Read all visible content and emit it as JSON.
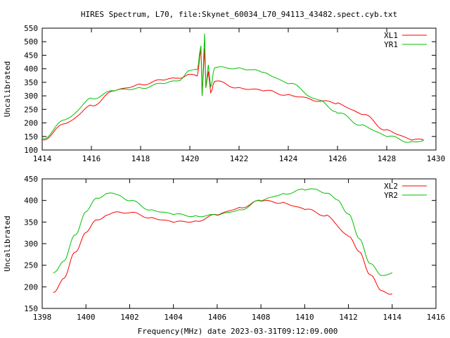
{
  "title": "HIRES Spectrum, L70, file:Skynet_60034_L70_94113_43482.spect.cyb.txt",
  "xlabel": "Frequency(MHz) date 2023-03-31T09:12:09.000",
  "colors": {
    "red": "#ff0000",
    "green": "#00c000"
  },
  "chart_data": [
    {
      "type": "line",
      "ylabel": "Uncalibrated",
      "xlim": [
        1414,
        1430
      ],
      "ylim": [
        100,
        550
      ],
      "xticks": [
        "1414",
        "1416",
        "1418",
        "1420",
        "1422",
        "1424",
        "1426",
        "1428",
        "1430"
      ],
      "yticks": [
        "100",
        "150",
        "200",
        "250",
        "300",
        "350",
        "400",
        "450",
        "500",
        "550"
      ],
      "legend_position": "top-right",
      "series": [
        {
          "name": "XL1",
          "color": "#ff0000",
          "x": [
            1414,
            1415,
            1416,
            1417,
            1418,
            1419,
            1419.5,
            1420,
            1420.3,
            1420.45,
            1420.5,
            1420.6,
            1420.65,
            1420.75,
            1420.85,
            1421,
            1422,
            1423,
            1424,
            1425.3,
            1426,
            1427,
            1428,
            1429,
            1429.5
          ],
          "y": [
            138,
            200,
            264,
            321,
            342,
            360,
            365,
            380,
            372,
            470,
            300,
            475,
            330,
            390,
            310,
            355,
            329,
            320,
            303,
            282,
            272,
            233,
            173,
            139,
            137
          ]
        },
        {
          "name": "YR1",
          "color": "#00c000",
          "x": [
            1414,
            1415,
            1416,
            1417,
            1418,
            1419,
            1419.5,
            1420,
            1420.3,
            1420.45,
            1420.5,
            1420.6,
            1420.65,
            1420.75,
            1420.85,
            1421,
            1422,
            1422.5,
            1423,
            1424,
            1425.3,
            1426,
            1427,
            1428,
            1429,
            1429.5
          ],
          "y": [
            142,
            215,
            290,
            321,
            329,
            347,
            355,
            394,
            395,
            485,
            300,
            530,
            330,
            415,
            330,
            405,
            402,
            398,
            385,
            347,
            282,
            238,
            191,
            152,
            129,
            136
          ]
        }
      ]
    },
    {
      "type": "line",
      "ylabel": "Uncalibrated",
      "xlim": [
        1398,
        1416
      ],
      "ylim": [
        150,
        450
      ],
      "xticks": [
        "1398",
        "1400",
        "1402",
        "1404",
        "1406",
        "1408",
        "1410",
        "1412",
        "1414",
        "1416"
      ],
      "yticks": [
        "150",
        "200",
        "250",
        "300",
        "350",
        "400",
        "450"
      ],
      "legend_position": "top-right",
      "series": [
        {
          "name": "XL2",
          "color": "#ff0000",
          "x": [
            1398.5,
            1399,
            1399.5,
            1400,
            1400.5,
            1401,
            1401.5,
            1402,
            1403,
            1404,
            1405,
            1406,
            1407,
            1408,
            1409,
            1410,
            1411,
            1412,
            1412.5,
            1413,
            1413.5,
            1414
          ],
          "y": [
            187,
            220,
            280,
            326,
            355,
            367,
            373,
            372,
            360,
            350,
            352,
            367,
            383,
            399,
            395,
            380,
            365,
            318,
            280,
            229,
            190,
            184
          ]
        },
        {
          "name": "YR2",
          "color": "#00c000",
          "x": [
            1398.5,
            1399,
            1399.5,
            1400,
            1400.5,
            1401,
            1401.5,
            1402,
            1403,
            1404,
            1405,
            1406,
            1407,
            1408,
            1409,
            1410,
            1410.5,
            1411,
            1411.5,
            1412,
            1412.5,
            1413,
            1413.5,
            1414
          ],
          "y": [
            233,
            260,
            320,
            374,
            405,
            417,
            412,
            400,
            378,
            368,
            364,
            366,
            378,
            400,
            415,
            425,
            425,
            418,
            400,
            370,
            310,
            255,
            225,
            233
          ]
        }
      ]
    }
  ]
}
